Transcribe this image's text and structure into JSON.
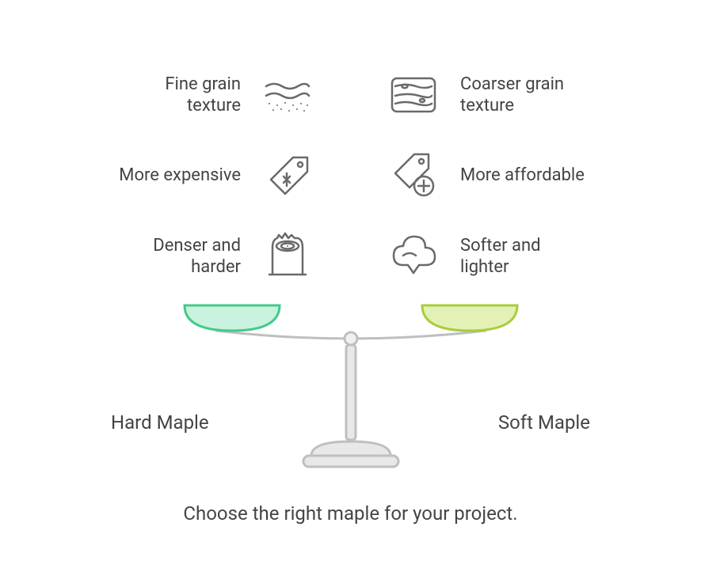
{
  "caption": "Choose the right maple for your project.",
  "left": {
    "title": "Hard Maple",
    "rows": [
      {
        "label": "Fine grain\ntexture"
      },
      {
        "label": "More expensive"
      },
      {
        "label": "Denser and\nharder"
      }
    ],
    "pan_fill": "#c9f3de",
    "pan_stroke": "#45c98a"
  },
  "right": {
    "title": "Soft Maple",
    "rows": [
      {
        "label": "Coarser grain\ntexture"
      },
      {
        "label": "More affordable"
      },
      {
        "label": "Softer and\nlighter"
      }
    ],
    "pan_fill": "#e3f1b6",
    "pan_stroke": "#a9cc3e"
  },
  "style": {
    "text_color": "#444444",
    "icon_stroke": "#6a6a6a",
    "icon_stroke_width": 2.5,
    "scale_stroke": "#bfbfbf",
    "scale_fill": "#e8e8e8",
    "background": "#ffffff",
    "font_size_label": 22,
    "font_size_title": 24,
    "font_size_caption": 24
  }
}
